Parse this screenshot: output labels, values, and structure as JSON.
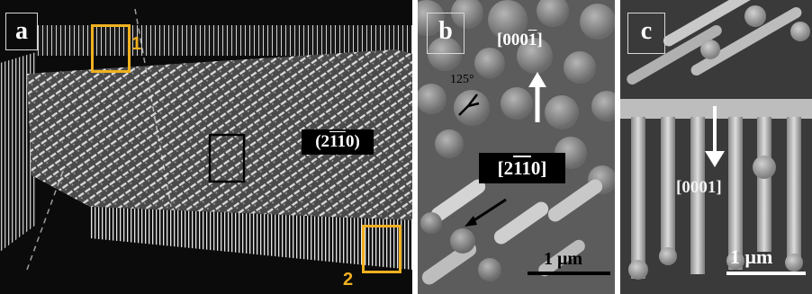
{
  "panel_a": {
    "label": "a",
    "plane_label": "(2110)",
    "plane_label_parts": [
      "(2",
      "1",
      "1",
      "0)"
    ],
    "region_markers": [
      "1",
      "2"
    ],
    "colors": {
      "marker": "#f0b020",
      "inset_box": "#000000"
    }
  },
  "panel_b": {
    "label": "b",
    "angle_label": "125°",
    "dir_up_parts": [
      "[000",
      "1",
      "]"
    ],
    "dir_down_parts": [
      "[2",
      "1",
      "1",
      "0]"
    ],
    "scale_bar": "1 μm"
  },
  "panel_c": {
    "label": "c",
    "dir_label": "[0001]",
    "scale_bar": "1 μm"
  }
}
